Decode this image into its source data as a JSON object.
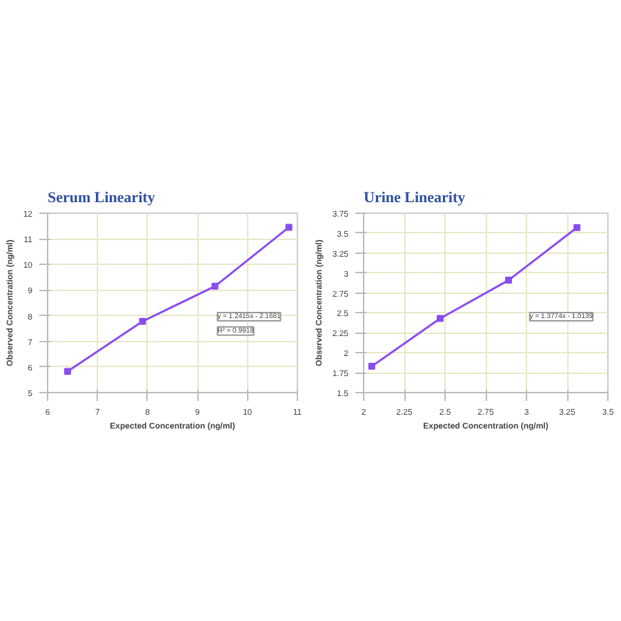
{
  "chart_data": [
    {
      "type": "line",
      "title": "Serum Linearity",
      "xlabel": "Expected Concentration (ng/ml)",
      "ylabel": "Observed Concentration (ng/ml)",
      "x": [
        6.4,
        7.9,
        9.35,
        10.83
      ],
      "series": [
        {
          "color": "#8a4cf0",
          "values": [
            5.83,
            7.78,
            9.15,
            11.45
          ]
        }
      ],
      "xlim": [
        6,
        11
      ],
      "xticks": [
        6,
        7,
        8,
        9,
        10,
        11
      ],
      "ylim": [
        5,
        12
      ],
      "yticks": [
        5,
        6,
        7,
        8,
        9,
        10,
        11,
        12
      ],
      "grid": true,
      "marker": "square",
      "line_style": "solid",
      "annotations": [
        "y = 1.2415x - 2.1681",
        "R² = 0.9918"
      ]
    },
    {
      "type": "line",
      "title": "Urine Linearity",
      "xlabel": "Expected Concentration (ng/ml)",
      "ylabel": "Observed Concentration (ng/ml)",
      "x": [
        2.05,
        2.47,
        2.89,
        3.31
      ],
      "series": [
        {
          "color": "#8a4cf0",
          "values": [
            1.83,
            2.43,
            2.91,
            3.57
          ]
        }
      ],
      "xlim": [
        2,
        3.5
      ],
      "xticks": [
        2,
        2.25,
        2.5,
        2.75,
        3,
        3.25,
        3.5
      ],
      "ylim": [
        1.5,
        3.75
      ],
      "yticks": [
        1.5,
        1.75,
        2,
        2.25,
        2.5,
        2.75,
        3,
        3.25,
        3.5,
        3.75
      ],
      "grid": true,
      "marker": "square",
      "line_style": "solid",
      "annotations": [
        "y = 1.3774x - 1.0139"
      ]
    }
  ]
}
